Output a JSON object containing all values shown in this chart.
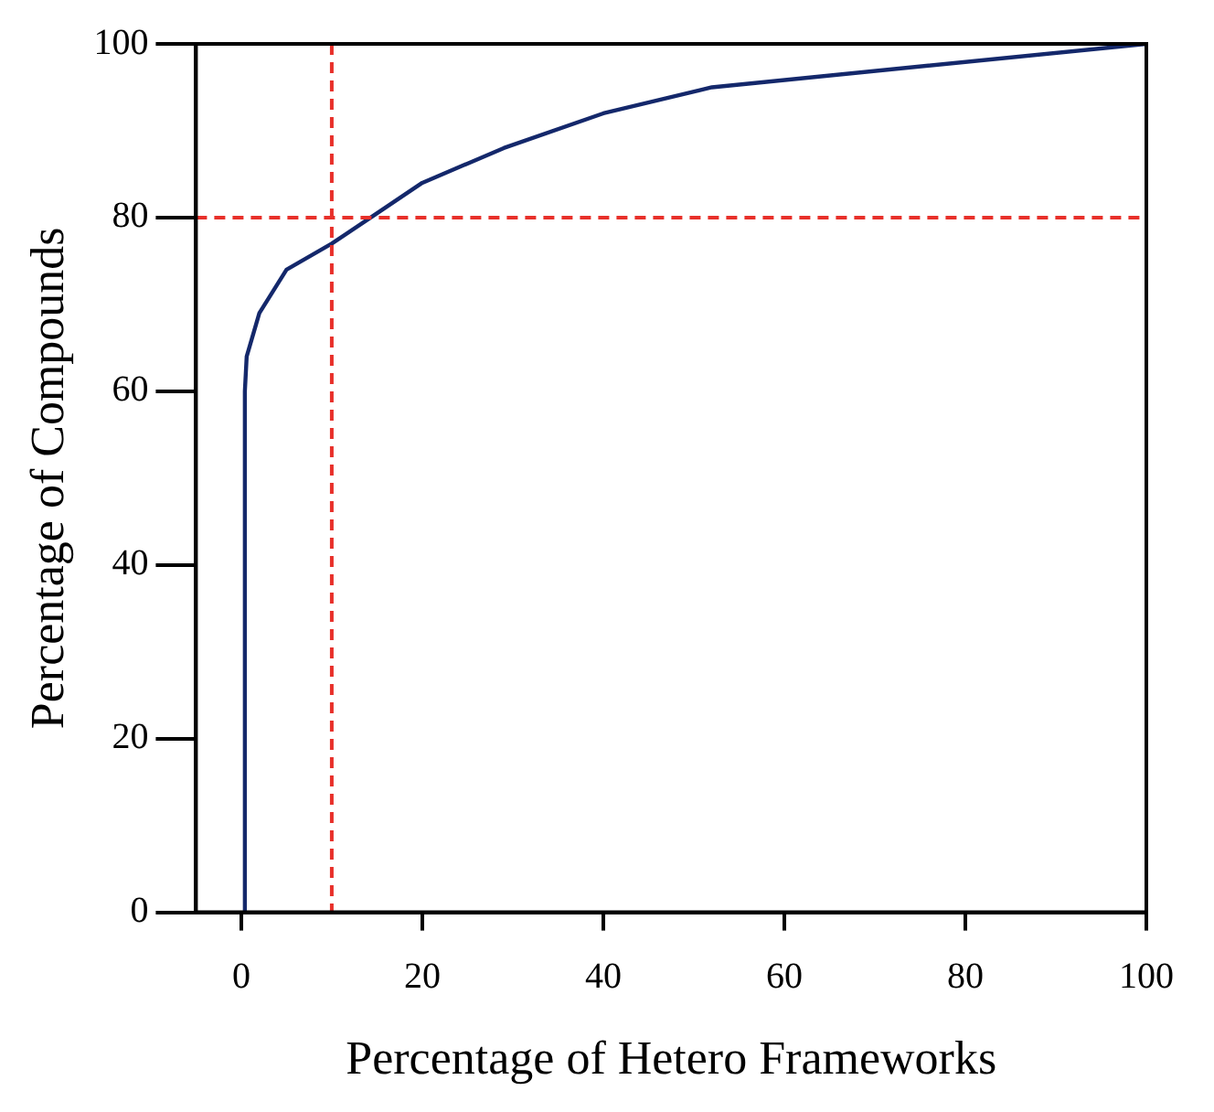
{
  "chart_data": {
    "type": "line",
    "xlabel": "Percentage of Hetero Frameworks",
    "ylabel": "Percentage of Compounds",
    "x": [
      0.4,
      0.4,
      0.6,
      2,
      5,
      10,
      14.3,
      20,
      29,
      40,
      52,
      100
    ],
    "series": [
      {
        "color": "#14286b",
        "values": [
          0,
          60,
          64,
          69,
          74,
          77,
          80,
          84,
          88,
          92,
          95,
          100
        ]
      }
    ],
    "xlim": [
      -5,
      100
    ],
    "ylim": [
      0,
      100
    ],
    "xticks": [
      0,
      20,
      40,
      60,
      80,
      100
    ],
    "yticks": [
      0,
      20,
      40,
      60,
      80,
      100
    ],
    "ref_lines": [
      {
        "axis": "x",
        "value": 10,
        "color": "#e8302a",
        "line_style": "dashed"
      },
      {
        "axis": "y",
        "value": 80,
        "color": "#e8302a",
        "line_style": "dashed"
      }
    ],
    "grid": false,
    "legend": false,
    "marker": "none",
    "line_style": "solid"
  }
}
